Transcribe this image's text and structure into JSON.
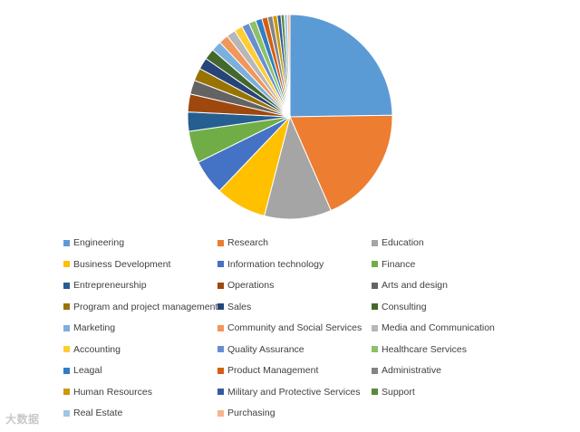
{
  "chart_data": {
    "type": "pie",
    "title": "",
    "legend_position": "bottom",
    "slices": [
      {
        "label": "Engineering",
        "value": 24.5,
        "color": "#5B9BD5"
      },
      {
        "label": "Research",
        "value": 18.5,
        "color": "#ED7D31"
      },
      {
        "label": "Education",
        "value": 10.5,
        "color": "#A5A5A5"
      },
      {
        "label": "Business Development",
        "value": 8.0,
        "color": "#FFC000"
      },
      {
        "label": "Information technology",
        "value": 5.5,
        "color": "#4472C4"
      },
      {
        "label": "Finance",
        "value": 5.0,
        "color": "#70AD47"
      },
      {
        "label": "Entrepreneurship",
        "value": 3.0,
        "color": "#255E91"
      },
      {
        "label": "Operations",
        "value": 2.8,
        "color": "#9E480E"
      },
      {
        "label": "Arts and design",
        "value": 2.2,
        "color": "#636363"
      },
      {
        "label": "Program and project management",
        "value": 2.0,
        "color": "#997300"
      },
      {
        "label": "Sales",
        "value": 1.8,
        "color": "#264478"
      },
      {
        "label": "Consulting",
        "value": 1.7,
        "color": "#43682B"
      },
      {
        "label": "Marketing",
        "value": 1.6,
        "color": "#7CAFDD"
      },
      {
        "label": "Community and Social Services",
        "value": 1.5,
        "color": "#F1975A"
      },
      {
        "label": "Media and Communication",
        "value": 1.4,
        "color": "#B7B7B7"
      },
      {
        "label": "Accounting",
        "value": 1.3,
        "color": "#FFCD33"
      },
      {
        "label": "Quality Assurance",
        "value": 1.2,
        "color": "#698ED0"
      },
      {
        "label": "Healthcare Services",
        "value": 1.1,
        "color": "#8CC168"
      },
      {
        "label": "Leagal",
        "value": 1.0,
        "color": "#327DC2"
      },
      {
        "label": "Product Management",
        "value": 0.9,
        "color": "#D26012"
      },
      {
        "label": "Administrative",
        "value": 0.8,
        "color": "#848484"
      },
      {
        "label": "Human Resources",
        "value": 0.7,
        "color": "#CC9A00"
      },
      {
        "label": "Military and Protective Services",
        "value": 0.6,
        "color": "#335AA1"
      },
      {
        "label": "Support",
        "value": 0.5,
        "color": "#5A8A39"
      },
      {
        "label": "Real Estate",
        "value": 0.5,
        "color": "#A3C3E8"
      },
      {
        "label": "Purchasing",
        "value": 0.4,
        "color": "#F5B58D"
      }
    ]
  },
  "watermark": "大数据"
}
